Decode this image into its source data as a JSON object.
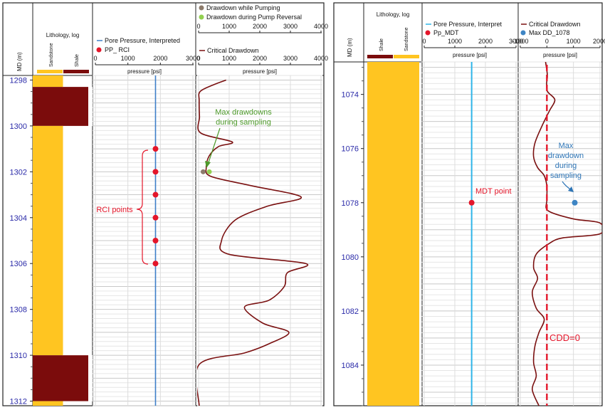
{
  "chart_data": [
    {
      "type": "well-log",
      "depth_axis": {
        "label": "MD (m)",
        "range": [
          1297.8,
          1312.2
        ],
        "ticks": [
          1298,
          1300,
          1302,
          1304,
          1306,
          1308,
          1310,
          1312
        ]
      },
      "lithology_track": {
        "title": "Lithology, log",
        "legend": [
          {
            "name": "Sandstone",
            "color": "#FFC521"
          },
          {
            "name": "Shale",
            "color": "#7B0C0C"
          }
        ],
        "intervals": [
          {
            "top": 1297.8,
            "base": 1298.3,
            "lithology": "Sandstone"
          },
          {
            "top": 1298.3,
            "base": 1300.0,
            "lithology": "Shale"
          },
          {
            "top": 1300.0,
            "base": 1310.0,
            "lithology": "Sandstone"
          },
          {
            "top": 1310.0,
            "base": 1312.0,
            "lithology": "Shale"
          },
          {
            "top": 1312.0,
            "base": 1312.2,
            "lithology": "Sandstone"
          }
        ]
      },
      "pressure_track": {
        "legend": [
          {
            "name": "Pore Pressure, Interpreted",
            "color": "#3E7FC8"
          },
          {
            "name": "PP_ RCI",
            "color": "#E4162A"
          }
        ],
        "xlabel": "pressure [psi]",
        "xlim": [
          0,
          3000
        ],
        "ticks": [
          0,
          1000,
          2000,
          3000
        ],
        "pore_pressure_psi": 1850,
        "rci_points": [
          {
            "depth": 1301.0,
            "pressure": 1850
          },
          {
            "depth": 1302.0,
            "pressure": 1850
          },
          {
            "depth": 1303.0,
            "pressure": 1850
          },
          {
            "depth": 1304.0,
            "pressure": 1850
          },
          {
            "depth": 1305.0,
            "pressure": 1850
          },
          {
            "depth": 1306.0,
            "pressure": 1850
          }
        ],
        "annotation": "RCI points"
      },
      "drawdown_track": {
        "legend": [
          {
            "name": "Drawdown while Pumping",
            "color": "#8C7B6B"
          },
          {
            "name": "Drawdown during Pump Reversal",
            "color": "#92D050"
          },
          {
            "name": "Critical Drawdown",
            "color": "#7A1010"
          }
        ],
        "xlabel": "pressure [psi]",
        "xlim": [
          0,
          4000
        ],
        "ticks": [
          0,
          1000,
          2000,
          3000,
          4000
        ],
        "critical_drawdown": [
          {
            "depth": 1298.0,
            "value": 900
          },
          {
            "depth": 1298.2,
            "value": 500
          },
          {
            "depth": 1298.5,
            "value": 50
          },
          {
            "depth": 1298.9,
            "value": 20
          },
          {
            "depth": 1299.6,
            "value": 30
          },
          {
            "depth": 1300.3,
            "value": 60
          },
          {
            "depth": 1300.7,
            "value": 1100
          },
          {
            "depth": 1300.9,
            "value": 650
          },
          {
            "depth": 1301.3,
            "value": 350
          },
          {
            "depth": 1301.8,
            "value": 250
          },
          {
            "depth": 1302.2,
            "value": 400
          },
          {
            "depth": 1302.6,
            "value": 1700
          },
          {
            "depth": 1303.1,
            "value": 3350
          },
          {
            "depth": 1303.5,
            "value": 2250
          },
          {
            "depth": 1304.1,
            "value": 1200
          },
          {
            "depth": 1305.0,
            "value": 750
          },
          {
            "depth": 1305.6,
            "value": 1000
          },
          {
            "depth": 1306.0,
            "value": 3500
          },
          {
            "depth": 1306.4,
            "value": 2900
          },
          {
            "depth": 1307.0,
            "value": 2800
          },
          {
            "depth": 1307.6,
            "value": 2300
          },
          {
            "depth": 1307.9,
            "value": 1500
          },
          {
            "depth": 1308.6,
            "value": 2100
          },
          {
            "depth": 1309.0,
            "value": 2950
          },
          {
            "depth": 1309.5,
            "value": 2300
          },
          {
            "depth": 1309.9,
            "value": 1500
          },
          {
            "depth": 1310.4,
            "value": 20
          },
          {
            "depth": 1312.2,
            "value": 20
          }
        ],
        "max_drawdowns": [
          {
            "name": "Drawdown while Pumping",
            "depth": 1302.0,
            "value": 150
          },
          {
            "name": "Drawdown during Pump Reversal",
            "depth": 1302.0,
            "value": 350
          }
        ],
        "annotation": "Max drawdowns during sampling"
      }
    },
    {
      "type": "well-log",
      "depth_axis": {
        "label": "MD (m)",
        "range": [
          1072.8,
          1085.5
        ],
        "ticks": [
          1074,
          1076,
          1078,
          1080,
          1082,
          1084
        ]
      },
      "lithology_track": {
        "title": "Lithology, log",
        "legend": [
          {
            "name": "Shale",
            "color": "#7B0C0C"
          },
          {
            "name": "Sandstone",
            "color": "#FFC521"
          }
        ],
        "intervals": [
          {
            "top": 1072.8,
            "base": 1085.5,
            "lithology": "Sandstone"
          }
        ]
      },
      "pressure_track": {
        "legend": [
          {
            "name": "Pore Pressure, Interpret",
            "color": "#2FB5E8"
          },
          {
            "name": "Pp_MDT",
            "color": "#E4162A"
          }
        ],
        "xlabel": "pressure [psi]",
        "xlim": [
          0,
          3000
        ],
        "ticks": [
          0,
          1000,
          2000,
          3000
        ],
        "pore_pressure_psi": 1550,
        "mdt_point": {
          "depth": 1078.0,
          "pressure": 1550
        },
        "annotation": "MDT point"
      },
      "drawdown_track": {
        "legend": [
          {
            "name": "Critical Drawdown",
            "color": "#7A1010"
          },
          {
            "name": "Max DD_1078",
            "color": "#3E85C4"
          }
        ],
        "xlabel": "pressure [psi]",
        "xlim": [
          -1000,
          2000
        ],
        "ticks": [
          -1000,
          0,
          1000,
          2000
        ],
        "cdd_zero_label": "CDD=0",
        "critical_drawdown": [
          {
            "depth": 1072.8,
            "value": -50
          },
          {
            "depth": 1073.3,
            "value": 20
          },
          {
            "depth": 1073.6,
            "value": -10
          },
          {
            "depth": 1073.9,
            "value": 30
          },
          {
            "depth": 1074.2,
            "value": 300
          },
          {
            "depth": 1074.6,
            "value": 100
          },
          {
            "depth": 1075.2,
            "value": -200
          },
          {
            "depth": 1075.8,
            "value": -450
          },
          {
            "depth": 1076.3,
            "value": -500
          },
          {
            "depth": 1076.7,
            "value": -350
          },
          {
            "depth": 1077.0,
            "value": -100
          },
          {
            "depth": 1077.4,
            "value": 0
          },
          {
            "depth": 1077.9,
            "value": 0
          },
          {
            "depth": 1078.3,
            "value": 50
          },
          {
            "depth": 1078.6,
            "value": 1000
          },
          {
            "depth": 1078.75,
            "value": 2000
          },
          {
            "depth": 1079.15,
            "value": 2000
          },
          {
            "depth": 1079.3,
            "value": 600
          },
          {
            "depth": 1079.5,
            "value": 100
          },
          {
            "depth": 1079.9,
            "value": -400
          },
          {
            "depth": 1080.4,
            "value": -500
          },
          {
            "depth": 1080.8,
            "value": -350
          },
          {
            "depth": 1081.3,
            "value": -550
          },
          {
            "depth": 1081.9,
            "value": -400
          },
          {
            "depth": 1082.3,
            "value": -100
          },
          {
            "depth": 1082.8,
            "value": -300
          },
          {
            "depth": 1083.3,
            "value": -450
          },
          {
            "depth": 1083.9,
            "value": -500
          },
          {
            "depth": 1084.4,
            "value": -400
          },
          {
            "depth": 1084.9,
            "value": -550
          },
          {
            "depth": 1085.5,
            "value": -300
          }
        ],
        "max_dd_point": {
          "depth": 1078.0,
          "value": 1050
        },
        "annotation": "Max drawdown during sampling"
      }
    }
  ]
}
